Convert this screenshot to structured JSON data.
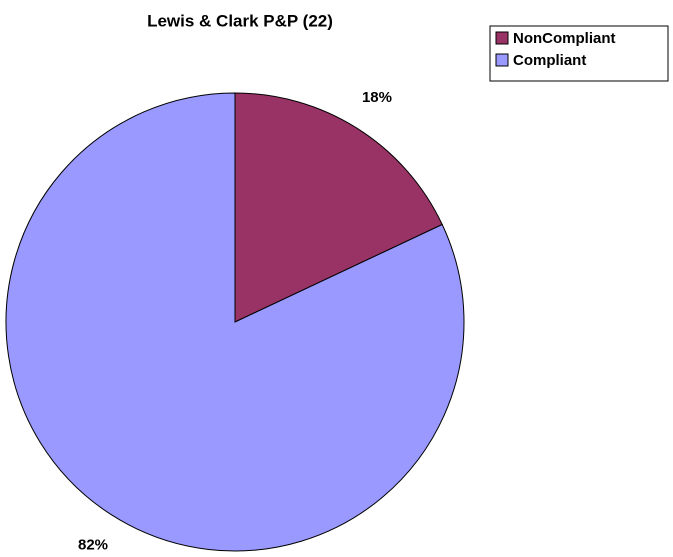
{
  "chart_data": {
    "type": "pie",
    "title": "Lewis & Clark P&P (22)",
    "categories": [
      "NonCompliant",
      "Compliant"
    ],
    "values": [
      18,
      82
    ],
    "value_labels": [
      "18%",
      "82%"
    ],
    "colors": [
      "#993366",
      "#9999ff"
    ],
    "legend": "top-right"
  }
}
